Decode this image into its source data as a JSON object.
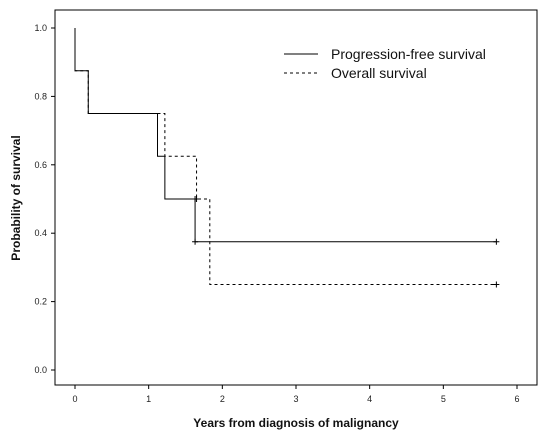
{
  "chart_data": {
    "type": "line",
    "subtype": "kaplan-meier step",
    "title": "",
    "xlabel": "Years from diagnosis of malignancy",
    "ylabel": "Probability of survival",
    "xlim": [
      0,
      6
    ],
    "ylim": [
      0,
      1
    ],
    "x_ticks": [
      "0",
      "1",
      "2",
      "3",
      "4",
      "5",
      "6"
    ],
    "y_ticks": [
      "0.0",
      "0.2",
      "0.4",
      "0.6",
      "0.8",
      "1.0"
    ],
    "grid": false,
    "legend_position": "top-right",
    "series": [
      {
        "name": "Progression-free survival",
        "line_style": "solid",
        "color": "#000000",
        "steps": [
          [
            0,
            1.0
          ],
          [
            0.0,
            0.875
          ],
          [
            0.18,
            0.75
          ],
          [
            1.12,
            0.625
          ],
          [
            1.22,
            0.5
          ],
          [
            1.63,
            0.375
          ],
          [
            5.72,
            0.375
          ]
        ],
        "censored": [
          [
            1.63,
            0.5
          ],
          [
            1.63,
            0.375
          ],
          [
            5.72,
            0.375
          ]
        ]
      },
      {
        "name": "Overall survival",
        "line_style": "dashed",
        "color": "#000000",
        "steps": [
          [
            0,
            1.0
          ],
          [
            0.0,
            0.875
          ],
          [
            0.18,
            0.75
          ],
          [
            1.22,
            0.625
          ],
          [
            1.65,
            0.5
          ],
          [
            1.83,
            0.25
          ],
          [
            5.72,
            0.25
          ]
        ],
        "censored": [
          [
            1.65,
            0.5
          ],
          [
            5.72,
            0.25
          ]
        ]
      }
    ]
  }
}
